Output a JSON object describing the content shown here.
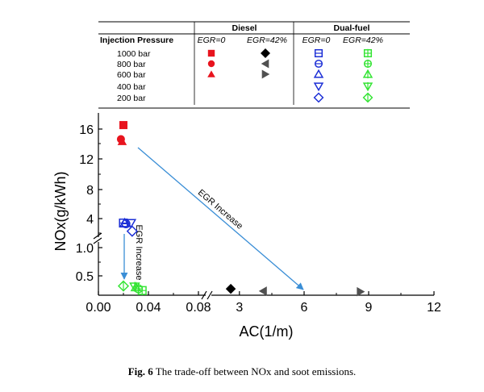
{
  "chart_data": {
    "type": "scatter",
    "xlabel": "AC(1/m)",
    "ylabel": "NOx(g/kWh)",
    "x_ticks": [
      "0.00",
      "0.04",
      "0.08",
      "3",
      "6",
      "9",
      "12"
    ],
    "y_ticks": [
      "0.5",
      "1.0",
      "4",
      "8",
      "12",
      "16"
    ],
    "x_axis_break": "between 0.08 and 3",
    "y_axis_break": "between 1.0 and 4",
    "legend": {
      "header": "Injection Pressure",
      "groups": [
        "Diesel",
        "Dual-fuel"
      ],
      "columns": [
        "EGR=0",
        "EGR=42%",
        "EGR=0",
        "EGR=42%"
      ],
      "pressures": [
        "1000 bar",
        "800 bar",
        "600 bar",
        "400 bar",
        "200 bar"
      ]
    },
    "series": [
      {
        "fuel": "Diesel",
        "egr": "EGR=0",
        "color": "#e8141e",
        "filled": true,
        "points": [
          {
            "pressure": "1000 bar",
            "x": 0.02,
            "y": 16.6
          },
          {
            "pressure": "800 bar",
            "x": 0.018,
            "y": 14.7
          },
          {
            "pressure": "600 bar",
            "x": 0.019,
            "y": 14.4
          }
        ]
      },
      {
        "fuel": "Diesel",
        "egr": "EGR=42%",
        "color": "#000000",
        "filled": true,
        "points": [
          {
            "pressure": "1000 bar",
            "x": 2.6,
            "y": 0.27
          }
        ]
      },
      {
        "fuel": "Diesel",
        "egr": "EGR=42%",
        "color": "#505050",
        "filled": true,
        "points": [
          {
            "pressure": "800 bar",
            "x": 4.1,
            "y": 0.23
          },
          {
            "pressure": "600 bar",
            "x": 8.6,
            "y": 0.22
          }
        ]
      },
      {
        "fuel": "Dual-fuel",
        "egr": "EGR=0",
        "color": "#1c2fd6",
        "filled": false,
        "points": [
          {
            "pressure": "1000 bar",
            "x": 0.02,
            "y": 3.4
          },
          {
            "pressure": "800 bar",
            "x": 0.022,
            "y": 3.3
          },
          {
            "pressure": "600 bar",
            "x": 0.021,
            "y": 3.4
          },
          {
            "pressure": "400 bar",
            "x": 0.026,
            "y": 3.4
          },
          {
            "pressure": "200 bar",
            "x": 0.027,
            "y": 2.3
          }
        ]
      },
      {
        "fuel": "Dual-fuel",
        "egr": "EGR=42%",
        "color": "#35e435",
        "filled": false,
        "points": [
          {
            "pressure": "1000 bar",
            "x": 0.035,
            "y": 0.24
          },
          {
            "pressure": "800 bar",
            "x": 0.032,
            "y": 0.27
          },
          {
            "pressure": "600 bar",
            "x": 0.03,
            "y": 0.3
          },
          {
            "pressure": "400 bar",
            "x": 0.029,
            "y": 0.31
          },
          {
            "pressure": "200 bar",
            "x": 0.02,
            "y": 0.32
          }
        ]
      }
    ],
    "annotations": [
      {
        "text": "EGR Increase",
        "from": {
          "x": 1.0,
          "y": 14.0
        },
        "to": {
          "x": 6.0,
          "y": 0.22
        }
      },
      {
        "text": "EGR Increase",
        "from": {
          "x": 0.026,
          "y": 1.6
        },
        "to": {
          "x": 0.026,
          "y": 0.34
        }
      }
    ]
  },
  "caption": {
    "label": "Fig. 6",
    "text": " The trade-off between NOx and soot emissions."
  }
}
